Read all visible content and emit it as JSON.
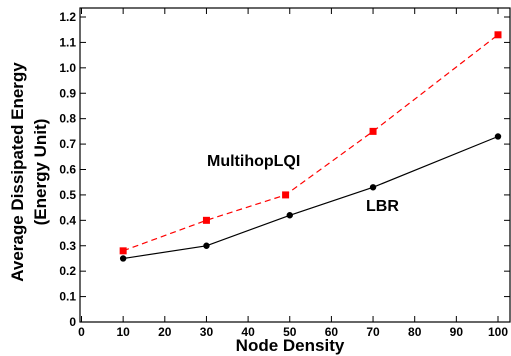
{
  "chart_data": {
    "type": "line",
    "xlabel": "Node Density",
    "ylabel_lines": [
      "Average Dissipated Energy",
      "(Energy Unit)"
    ],
    "xlim": [
      0,
      100
    ],
    "ylim": [
      0,
      1.2
    ],
    "xticks": [
      0,
      10,
      20,
      30,
      40,
      50,
      60,
      70,
      80,
      90,
      100
    ],
    "yticks": [
      0,
      0.1,
      0.2,
      0.3,
      0.4,
      0.5,
      0.6,
      0.7,
      0.8,
      0.9,
      1.0,
      1.1,
      1.2
    ],
    "xtick_labels": [
      "0",
      "10",
      "20",
      "30",
      "40",
      "50",
      "60",
      "70",
      "80",
      "90",
      "100"
    ],
    "ytick_labels": [
      "0",
      "0.1",
      "0.2",
      "0.3",
      "0.4",
      "0.5",
      "0.6",
      "0.7",
      "0.8",
      "0.9",
      "1.0",
      "1.1",
      "1.2"
    ],
    "grid": false,
    "series": [
      {
        "name": "MultihopLQI",
        "x": [
          10,
          30,
          49,
          70,
          100
        ],
        "y": [
          0.28,
          0.4,
          0.5,
          0.75,
          1.13
        ],
        "color": "#ff0000",
        "marker": "square",
        "dash": true
      },
      {
        "name": "LBR",
        "x": [
          10,
          30,
          50,
          70,
          100
        ],
        "y": [
          0.25,
          0.3,
          0.42,
          0.53,
          0.73
        ],
        "color": "#000000",
        "marker": "circle",
        "dash": false
      }
    ]
  }
}
